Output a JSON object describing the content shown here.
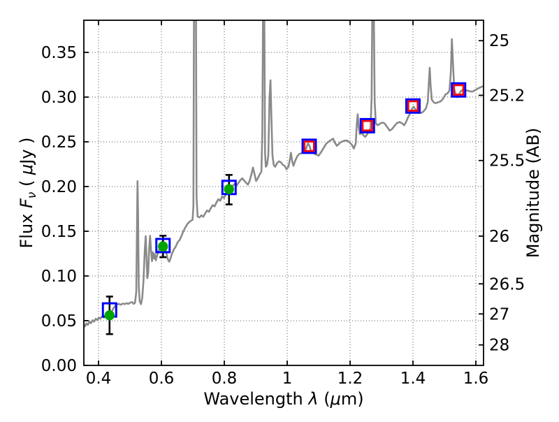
{
  "chart_data": {
    "type": "line+scatter",
    "title": "",
    "xlabel": "Wavelength λ (μm)",
    "xlabel_parts": [
      {
        "t": "Wavelength  ",
        "i": false
      },
      {
        "t": "λ",
        "i": true
      },
      {
        "t": " (",
        "i": false
      },
      {
        "t": "μ",
        "i": true
      },
      {
        "t": "m)",
        "i": false
      }
    ],
    "ylabel_left": "Flux Fν ( μJy )",
    "ylabel_left_parts": [
      {
        "t": "Flux  ",
        "i": false
      },
      {
        "t": "F",
        "i": true
      },
      {
        "t": "ν",
        "i": true,
        "sub": true
      },
      {
        "t": "  ( ",
        "i": false
      },
      {
        "t": "μ",
        "i": true
      },
      {
        "t": "Jy )",
        "i": false
      }
    ],
    "ylabel_right": "Magnitude (AB)",
    "xlim": [
      0.3533,
      1.6244
    ],
    "ylim": [
      0.0,
      0.3859
    ],
    "x_ticks": [
      0.4,
      0.6,
      0.8,
      1.0,
      1.2,
      1.4,
      1.6
    ],
    "x_tick_labels": [
      "0.4",
      "0.6",
      "0.8",
      "1",
      "1.2",
      "1.4",
      "1.6"
    ],
    "y_ticks_left": [
      0.0,
      0.05,
      0.1,
      0.15,
      0.2,
      0.25,
      0.3,
      0.35
    ],
    "y_tick_labels_left": [
      "0.00",
      "0.05",
      "0.10",
      "0.15",
      "0.20",
      "0.25",
      "0.30",
      "0.35"
    ],
    "y_ticks_right_mag": [
      25,
      25.2,
      25.5,
      26,
      26.5,
      27,
      28
    ],
    "y_tick_labels_right": [
      "25",
      "25.2",
      "25.5",
      "26",
      "26.5",
      "27",
      "28"
    ],
    "ab_zeropoint_ujy": 23.9,
    "grid": {
      "style": "dotted",
      "at": "major-ticks"
    },
    "legend": "none",
    "colors": {
      "spectrum": "#8a8a8a",
      "blue_square": "#0000ff",
      "red_square": "#ff0000",
      "green_circle": "#00a400",
      "error_bar": "#000000",
      "grid": "#555555",
      "frame": "#000000",
      "background": "#ffffff"
    },
    "photometry": [
      {
        "wavelength": 0.435,
        "square_flux": 0.062,
        "circle_flux": 0.056,
        "err_lo": 0.035,
        "err_hi": 0.077
      },
      {
        "wavelength": 0.605,
        "square_flux": 0.134,
        "circle_flux": 0.133,
        "err_lo": 0.121,
        "err_hi": 0.145
      },
      {
        "wavelength": 0.815,
        "square_flux": 0.199,
        "circle_flux": 0.197,
        "err_lo": 0.18,
        "err_hi": 0.213
      },
      {
        "wavelength": 1.07,
        "square_flux": 0.245,
        "red_square_flux": 0.245
      },
      {
        "wavelength": 1.255,
        "square_flux": 0.268,
        "red_square_flux": 0.268
      },
      {
        "wavelength": 1.4,
        "square_flux": 0.29,
        "red_square_flux": 0.29
      },
      {
        "wavelength": 1.545,
        "square_flux": 0.308,
        "red_square_flux": 0.308
      }
    ],
    "spectrum_points": [
      [
        0.353,
        0.046
      ],
      [
        0.357,
        0.0437
      ],
      [
        0.361,
        0.047
      ],
      [
        0.366,
        0.0452
      ],
      [
        0.371,
        0.049
      ],
      [
        0.376,
        0.0472
      ],
      [
        0.381,
        0.0505
      ],
      [
        0.386,
        0.049
      ],
      [
        0.391,
        0.0522
      ],
      [
        0.396,
        0.0508
      ],
      [
        0.401,
        0.0535
      ],
      [
        0.406,
        0.0522
      ],
      [
        0.411,
        0.0548
      ],
      [
        0.417,
        0.0535
      ],
      [
        0.423,
        0.0558
      ],
      [
        0.429,
        0.0562
      ],
      [
        0.435,
        0.0575
      ],
      [
        0.441,
        0.0595
      ],
      [
        0.447,
        0.0638
      ],
      [
        0.453,
        0.0665
      ],
      [
        0.459,
        0.0682
      ],
      [
        0.465,
        0.0688
      ],
      [
        0.471,
        0.0678
      ],
      [
        0.477,
        0.0692
      ],
      [
        0.483,
        0.0685
      ],
      [
        0.489,
        0.0695
      ],
      [
        0.495,
        0.0688
      ],
      [
        0.501,
        0.0702
      ],
      [
        0.507,
        0.0708
      ],
      [
        0.512,
        0.0688
      ],
      [
        0.516,
        0.0698
      ],
      [
        0.52,
        0.082
      ],
      [
        0.5225,
        0.158
      ],
      [
        0.524,
        0.206
      ],
      [
        0.5258,
        0.168
      ],
      [
        0.528,
        0.088
      ],
      [
        0.531,
        0.0715
      ],
      [
        0.535,
        0.0685
      ],
      [
        0.539,
        0.0755
      ],
      [
        0.543,
        0.0955
      ],
      [
        0.547,
        0.129
      ],
      [
        0.55,
        0.1445
      ],
      [
        0.5525,
        0.1235
      ],
      [
        0.555,
        0.0975
      ],
      [
        0.558,
        0.1035
      ],
      [
        0.561,
        0.131
      ],
      [
        0.564,
        0.145
      ],
      [
        0.567,
        0.1285
      ],
      [
        0.57,
        0.1165
      ],
      [
        0.573,
        0.1265
      ],
      [
        0.576,
        0.1195
      ],
      [
        0.579,
        0.1245
      ],
      [
        0.582,
        0.1175
      ],
      [
        0.586,
        0.1225
      ],
      [
        0.59,
        0.1275
      ],
      [
        0.595,
        0.1308
      ],
      [
        0.6,
        0.1332
      ],
      [
        0.605,
        0.134
      ],
      [
        0.61,
        0.1318
      ],
      [
        0.615,
        0.1272
      ],
      [
        0.62,
        0.1188
      ],
      [
        0.625,
        0.116
      ],
      [
        0.63,
        0.1208
      ],
      [
        0.635,
        0.1262
      ],
      [
        0.64,
        0.1298
      ],
      [
        0.646,
        0.1332
      ],
      [
        0.652,
        0.1378
      ],
      [
        0.658,
        0.1402
      ],
      [
        0.664,
        0.1448
      ],
      [
        0.67,
        0.1502
      ],
      [
        0.676,
        0.1542
      ],
      [
        0.682,
        0.1578
      ],
      [
        0.688,
        0.1602
      ],
      [
        0.694,
        0.1618
      ],
      [
        0.699,
        0.1628
      ],
      [
        0.7018,
        0.178
      ],
      [
        0.7038,
        0.42
      ],
      [
        0.7078,
        0.43
      ],
      [
        0.7098,
        0.42
      ],
      [
        0.7118,
        0.188
      ],
      [
        0.715,
        0.1662
      ],
      [
        0.721,
        0.1655
      ],
      [
        0.727,
        0.1678
      ],
      [
        0.733,
        0.1662
      ],
      [
        0.739,
        0.1698
      ],
      [
        0.745,
        0.1732
      ],
      [
        0.751,
        0.1718
      ],
      [
        0.757,
        0.1758
      ],
      [
        0.763,
        0.1792
      ],
      [
        0.769,
        0.1778
      ],
      [
        0.775,
        0.1822
      ],
      [
        0.781,
        0.1858
      ],
      [
        0.787,
        0.1842
      ],
      [
        0.793,
        0.1888
      ],
      [
        0.799,
        0.1872
      ],
      [
        0.805,
        0.1918
      ],
      [
        0.811,
        0.1952
      ],
      [
        0.815,
        0.198
      ],
      [
        0.821,
        0.1972
      ],
      [
        0.827,
        0.2008
      ],
      [
        0.833,
        0.2032
      ],
      [
        0.839,
        0.2012
      ],
      [
        0.845,
        0.2042
      ],
      [
        0.851,
        0.2072
      ],
      [
        0.857,
        0.2092
      ],
      [
        0.863,
        0.2068
      ],
      [
        0.869,
        0.2042
      ],
      [
        0.875,
        0.2022
      ],
      [
        0.881,
        0.2068
      ],
      [
        0.887,
        0.2148
      ],
      [
        0.891,
        0.2212
      ],
      [
        0.896,
        0.2142
      ],
      [
        0.901,
        0.2062
      ],
      [
        0.906,
        0.2088
      ],
      [
        0.912,
        0.2132
      ],
      [
        0.918,
        0.2168
      ],
      [
        0.9208,
        0.258
      ],
      [
        0.9238,
        0.43
      ],
      [
        0.9268,
        0.42
      ],
      [
        0.9295,
        0.238
      ],
      [
        0.932,
        0.2222
      ],
      [
        0.936,
        0.2242
      ],
      [
        0.94,
        0.2348
      ],
      [
        0.9438,
        0.298
      ],
      [
        0.9468,
        0.3188
      ],
      [
        0.9498,
        0.278
      ],
      [
        0.953,
        0.2352
      ],
      [
        0.957,
        0.2242
      ],
      [
        0.962,
        0.2222
      ],
      [
        0.968,
        0.2262
      ],
      [
        0.974,
        0.2282
      ],
      [
        0.98,
        0.2272
      ],
      [
        0.986,
        0.2242
      ],
      [
        0.992,
        0.2232
      ],
      [
        0.998,
        0.2192
      ],
      [
        1.004,
        0.2222
      ],
      [
        1.009,
        0.2308
      ],
      [
        1.012,
        0.2378
      ],
      [
        1.016,
        0.2282
      ],
      [
        1.02,
        0.2232
      ],
      [
        1.026,
        0.2292
      ],
      [
        1.032,
        0.2338
      ],
      [
        1.038,
        0.2362
      ],
      [
        1.044,
        0.2372
      ],
      [
        1.05,
        0.2382
      ],
      [
        1.056,
        0.2392
      ],
      [
        1.061,
        0.2432
      ],
      [
        1.066,
        0.2485
      ],
      [
        1.071,
        0.2455
      ],
      [
        1.076,
        0.2392
      ],
      [
        1.082,
        0.2375
      ],
      [
        1.088,
        0.2365
      ],
      [
        1.094,
        0.2355
      ],
      [
        1.1,
        0.2345
      ],
      [
        1.108,
        0.2385
      ],
      [
        1.116,
        0.2432
      ],
      [
        1.124,
        0.2478
      ],
      [
        1.132,
        0.2502
      ],
      [
        1.14,
        0.2522
      ],
      [
        1.146,
        0.2535
      ],
      [
        1.152,
        0.2488
      ],
      [
        1.158,
        0.2455
      ],
      [
        1.164,
        0.2475
      ],
      [
        1.17,
        0.2495
      ],
      [
        1.176,
        0.2505
      ],
      [
        1.182,
        0.2512
      ],
      [
        1.19,
        0.2515
      ],
      [
        1.198,
        0.2495
      ],
      [
        1.206,
        0.2465
      ],
      [
        1.212,
        0.2425
      ],
      [
        1.218,
        0.2482
      ],
      [
        1.2215,
        0.2705
      ],
      [
        1.2242,
        0.2808
      ],
      [
        1.2272,
        0.2672
      ],
      [
        1.231,
        0.2585
      ],
      [
        1.236,
        0.2605
      ],
      [
        1.242,
        0.2575
      ],
      [
        1.248,
        0.2555
      ],
      [
        1.254,
        0.2582
      ],
      [
        1.26,
        0.2622
      ],
      [
        1.265,
        0.2652
      ],
      [
        1.2685,
        0.298
      ],
      [
        1.2712,
        0.43
      ],
      [
        1.2748,
        0.42
      ],
      [
        1.2782,
        0.295
      ],
      [
        1.282,
        0.2705
      ],
      [
        1.288,
        0.2685
      ],
      [
        1.295,
        0.2702
      ],
      [
        1.302,
        0.2715
      ],
      [
        1.31,
        0.2705
      ],
      [
        1.318,
        0.2665
      ],
      [
        1.326,
        0.2625
      ],
      [
        1.334,
        0.2645
      ],
      [
        1.342,
        0.2682
      ],
      [
        1.35,
        0.2712
      ],
      [
        1.358,
        0.2722
      ],
      [
        1.366,
        0.2705
      ],
      [
        1.372,
        0.2685
      ],
      [
        1.378,
        0.2722
      ],
      [
        1.384,
        0.2772
      ],
      [
        1.39,
        0.2812
      ],
      [
        1.396,
        0.2862
      ],
      [
        1.402,
        0.2892
      ],
      [
        1.408,
        0.2862
      ],
      [
        1.414,
        0.2845
      ],
      [
        1.42,
        0.2832
      ],
      [
        1.427,
        0.2822
      ],
      [
        1.434,
        0.2842
      ],
      [
        1.441,
        0.2872
      ],
      [
        1.447,
        0.2945
      ],
      [
        1.4508,
        0.318
      ],
      [
        1.4532,
        0.3328
      ],
      [
        1.4558,
        0.315
      ],
      [
        1.4598,
        0.2972
      ],
      [
        1.466,
        0.2942
      ],
      [
        1.472,
        0.2932
      ],
      [
        1.48,
        0.2942
      ],
      [
        1.488,
        0.2952
      ],
      [
        1.496,
        0.2982
      ],
      [
        1.504,
        0.3032
      ],
      [
        1.51,
        0.3042
      ],
      [
        1.516,
        0.3072
      ],
      [
        1.5205,
        0.328
      ],
      [
        1.5238,
        0.3648
      ],
      [
        1.5272,
        0.338
      ],
      [
        1.531,
        0.3092
      ],
      [
        1.536,
        0.3032
      ],
      [
        1.541,
        0.2998
      ],
      [
        1.546,
        0.3022
      ],
      [
        1.551,
        0.3062
      ],
      [
        1.558,
        0.3082
      ],
      [
        1.566,
        0.3075
      ],
      [
        1.574,
        0.3072
      ],
      [
        1.582,
        0.3062
      ],
      [
        1.59,
        0.3062
      ],
      [
        1.6,
        0.3082
      ],
      [
        1.61,
        0.3102
      ],
      [
        1.62,
        0.3118
      ],
      [
        1.6244,
        0.3122
      ]
    ]
  }
}
